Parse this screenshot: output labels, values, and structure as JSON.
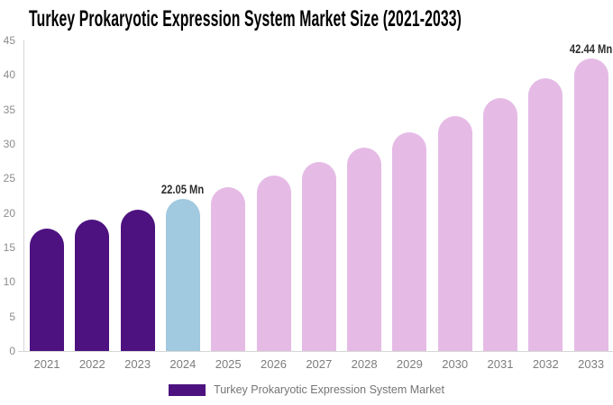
{
  "chart_data": {
    "type": "bar",
    "title": "Turkey Prokaryotic Expression System Market Size (2021-2033)",
    "unit": "Mn",
    "categories": [
      "2021",
      "2022",
      "2023",
      "2024",
      "2025",
      "2026",
      "2027",
      "2028",
      "2029",
      "2030",
      "2031",
      "2032",
      "2033"
    ],
    "values": [
      17.7,
      19.1,
      20.5,
      22.05,
      23.7,
      25.5,
      27.4,
      29.5,
      31.7,
      34.1,
      36.7,
      39.5,
      42.44
    ],
    "colors": [
      "#4D1280",
      "#4D1280",
      "#4D1280",
      "#A1C9DF",
      "#E5BBE6",
      "#E5BBE6",
      "#E5BBE6",
      "#E5BBE6",
      "#E5BBE6",
      "#E5BBE6",
      "#E5BBE6",
      "#E5BBE6",
      "#E5BBE6"
    ],
    "segment_colors": {
      "historical": "#4D1280",
      "base_year": "#A1C9DF",
      "forecast": "#E5BBE6"
    },
    "ylim": [
      0,
      45
    ],
    "yticks": [
      0,
      5,
      10,
      15,
      20,
      25,
      30,
      35,
      40,
      45
    ],
    "grid": false,
    "legend_position": "bottom",
    "annotations": [
      {
        "category": "2024",
        "text": "22.05 Mn"
      },
      {
        "category": "2033",
        "text": "42.44 Mn"
      }
    ],
    "legend": [
      {
        "label": "Turkey Prokaryotic Expression System Market",
        "color": "#4D1280"
      }
    ]
  }
}
